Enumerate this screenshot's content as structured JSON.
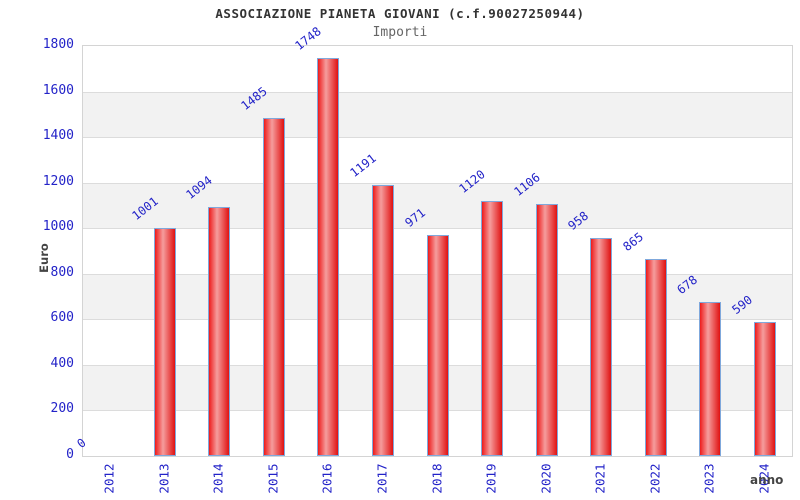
{
  "chart_data": {
    "type": "bar",
    "title": "ASSOCIAZIONE PIANETA GIOVANI (c.f.90027250944)",
    "subtitle": "Importi",
    "xlabel": "anno",
    "ylabel": "Euro",
    "categories": [
      "2012",
      "2013",
      "2014",
      "2015",
      "2016",
      "2017",
      "2018",
      "2019",
      "2020",
      "2021",
      "2022",
      "2023",
      "2024"
    ],
    "values": [
      0,
      1001,
      1094,
      1485,
      1748,
      1191,
      971,
      1120,
      1106,
      958,
      865,
      678,
      590
    ],
    "ylim": [
      0,
      1800
    ],
    "ytick_step": 200,
    "yticks": [
      0,
      200,
      400,
      600,
      800,
      1000,
      1200,
      1400,
      1600,
      1800
    ],
    "grid": "horizontal",
    "legend": "none",
    "band_fill_alternating": true,
    "colors": {
      "bar_fill_left": "#ee1b1b",
      "bar_fill_highlight": "#f59d9d",
      "bar_fill_right": "#e01212",
      "bar_border": "#7fa8dc",
      "tick_label": "#2323c8",
      "value_label": "#2323c8",
      "gridline": "#dcdcdc",
      "band_gray": "#f2f2f2",
      "title": "#333333",
      "subtitle": "#666666",
      "axis_title": "#444444",
      "background": "#ffffff"
    }
  }
}
